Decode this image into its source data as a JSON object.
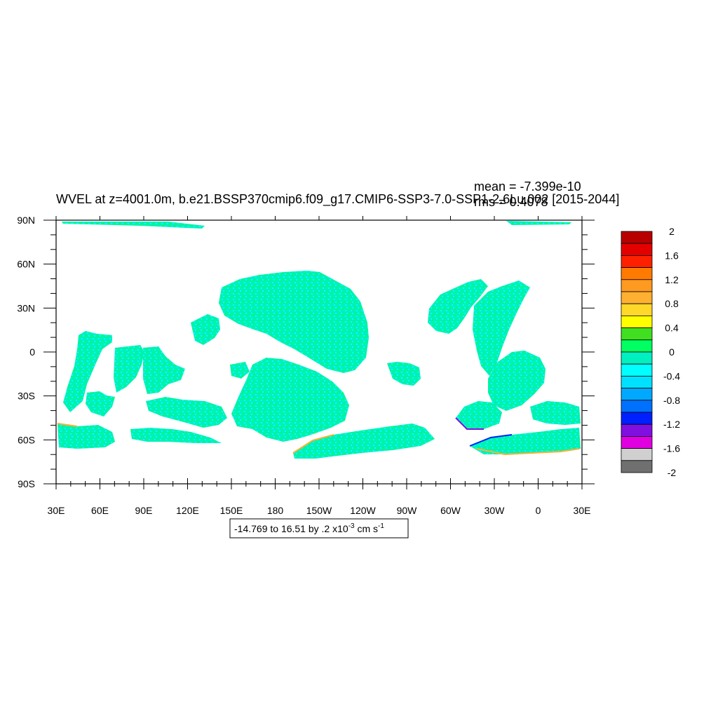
{
  "title": "WVEL at z=4001.0m, b.e21.BSSP370cmip6.f09_g17.CMIP6-SSP3-7.0-SSP1-2.6Lu.002 [2015-2044]",
  "stats": {
    "mean": "mean = -7.399e-10",
    "rms": "rms = 0.4078"
  },
  "axes": {
    "lon_labels": [
      "30E",
      "60E",
      "90E",
      "120E",
      "150E",
      "180",
      "150W",
      "120W",
      "90W",
      "60W",
      "30W",
      "0",
      "30E"
    ],
    "lat_labels": [
      "90N",
      "60N",
      "30N",
      "0",
      "30S",
      "60S",
      "90S"
    ]
  },
  "colorbar": {
    "labels": [
      "2",
      "1.6",
      "1.2",
      "0.8",
      "0.4",
      "0",
      "-0.4",
      "-0.8",
      "-1.2",
      "-1.6",
      "-2"
    ],
    "colors": [
      "#b80000",
      "#e50000",
      "#ff2000",
      "#ff7a00",
      "#ff9a20",
      "#ffb030",
      "#ffd82a",
      "#ffff00",
      "#40e020",
      "#00ff60",
      "#00f0c0",
      "#00ffff",
      "#00e0ff",
      "#00a8ff",
      "#0070ff",
      "#0020ff",
      "#8010e0",
      "#e000e0",
      "#d0d0d0",
      "#707070"
    ]
  },
  "info": {
    "range_text": "-14.769 to 16.51 by .2 x10",
    "exponent": "-3",
    "unit_text": " cm s",
    "unit_exponent": "-1"
  },
  "map_colors": {
    "ocean_main": "#00f0c0",
    "ocean_alt": "#00ffff",
    "ocean_pos": "#00ff60",
    "edge_pos": "#ffb030",
    "edge_neg": "#0020ff"
  }
}
